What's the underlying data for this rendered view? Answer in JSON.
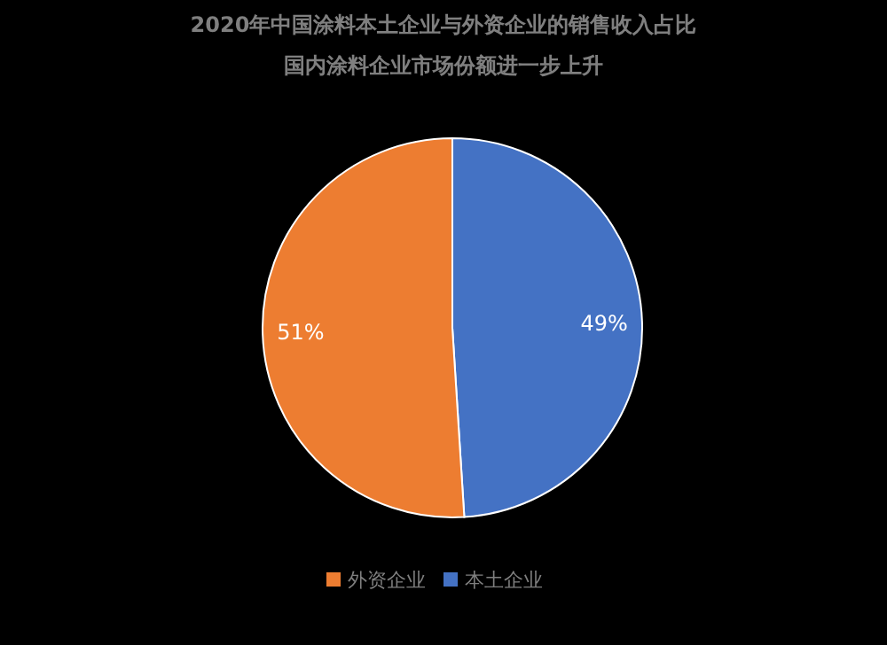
{
  "chart_data": {
    "type": "pie",
    "title": "2020年中国涂料本土企业与外资企业的销售收入占比",
    "subtitle": "国内涂料企业市场份额进一步上升",
    "categories": [
      "本土企业",
      "外资企业"
    ],
    "values": [
      49,
      51
    ],
    "colors": [
      "#4472c4",
      "#ed7d31"
    ],
    "value_labels": [
      "49%",
      "51%"
    ],
    "legend": "bottom"
  }
}
